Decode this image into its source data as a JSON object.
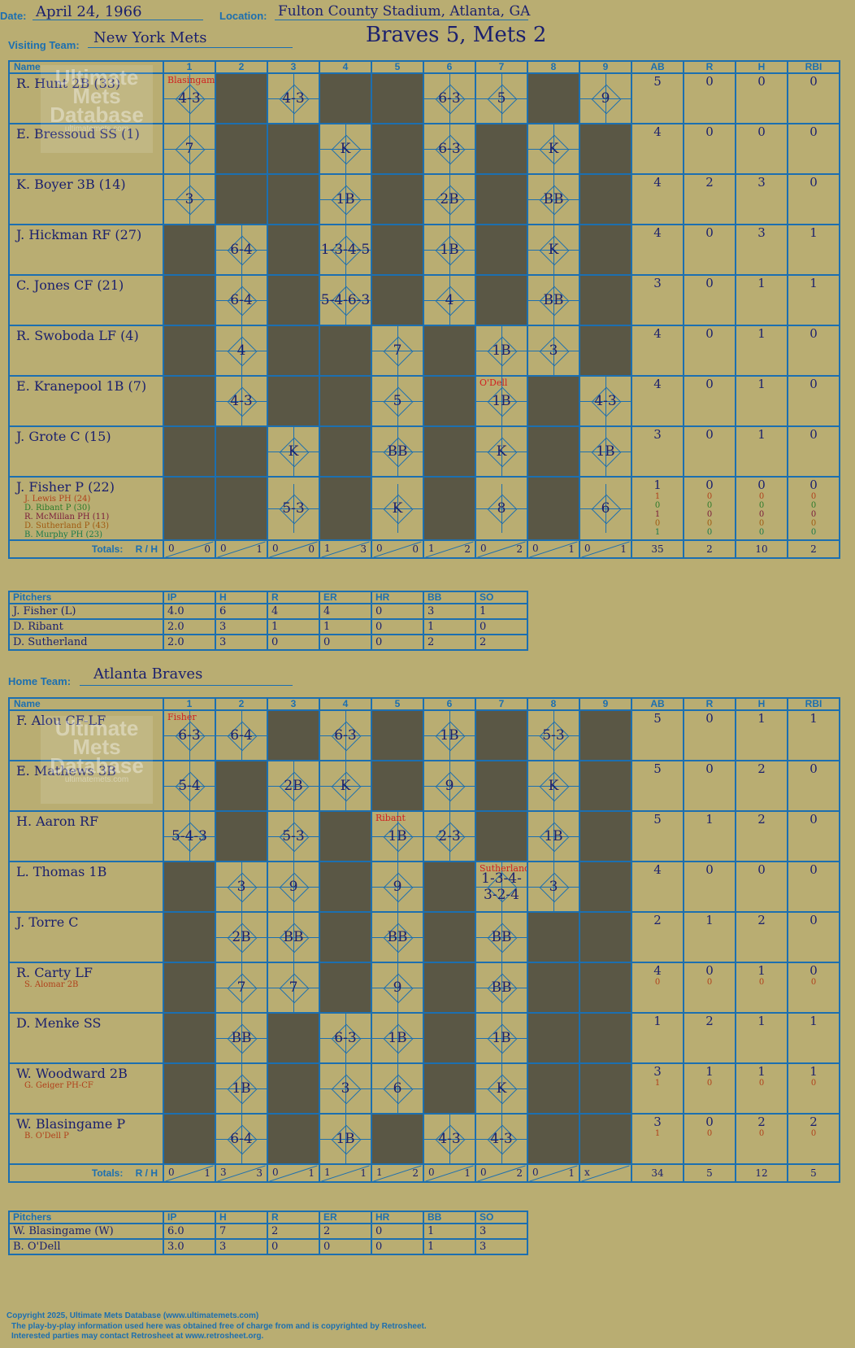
{
  "header": {
    "date_label": "Date:",
    "date": "April 24, 1966",
    "location_label": "Location:",
    "location": "Fulton County Stadium, Atlanta, GA",
    "visiting_label": "Visiting Team:",
    "visiting_team": "New York Mets",
    "score": "Braves 5, Mets 2",
    "home_label": "Home Team:",
    "home_team": "Atlanta Braves"
  },
  "watermark": {
    "l1": "Ultimate",
    "l2": "Mets",
    "l3": "Database",
    "url": "ultimatemets.com"
  },
  "columns": {
    "name": "Name",
    "innings": [
      "1",
      "2",
      "3",
      "4",
      "5",
      "6",
      "7",
      "8",
      "9"
    ],
    "stats": [
      "AB",
      "R",
      "H",
      "RBI"
    ],
    "totals": "Totals:",
    "r": "R",
    "h": "H"
  },
  "visitors": {
    "batters": [
      {
        "name": "R. Hunt 2B (33)",
        "subs": [],
        "ab": "5",
        "r": "0",
        "h": "0",
        "rbi": "0",
        "sub_stats": []
      },
      {
        "name": "E. Bressoud SS (1)",
        "subs": [],
        "ab": "4",
        "r": "0",
        "h": "0",
        "rbi": "0",
        "sub_stats": []
      },
      {
        "name": "K. Boyer 3B (14)",
        "subs": [],
        "ab": "4",
        "r": "2",
        "h": "3",
        "rbi": "0",
        "sub_stats": []
      },
      {
        "name": "J. Hickman RF (27)",
        "subs": [],
        "ab": "4",
        "r": "0",
        "h": "3",
        "rbi": "1",
        "sub_stats": []
      },
      {
        "name": "C. Jones CF (21)",
        "subs": [],
        "ab": "3",
        "r": "0",
        "h": "1",
        "rbi": "1",
        "sub_stats": []
      },
      {
        "name": "R. Swoboda LF (4)",
        "subs": [],
        "ab": "4",
        "r": "0",
        "h": "1",
        "rbi": "0",
        "sub_stats": []
      },
      {
        "name": "E. Kranepool 1B (7)",
        "subs": [],
        "ab": "4",
        "r": "0",
        "h": "1",
        "rbi": "0",
        "sub_stats": []
      },
      {
        "name": "J. Grote C (15)",
        "subs": [],
        "ab": "3",
        "r": "0",
        "h": "1",
        "rbi": "0",
        "sub_stats": []
      },
      {
        "name": "J. Fisher P (22)",
        "subs": [
          {
            "name": "J. Lewis PH (24)",
            "color": "#b0401a"
          },
          {
            "name": "D. Ribant P (30)",
            "color": "#2a7a2a"
          },
          {
            "name": "R. McMillan PH (11)",
            "color": "#7a1a3a"
          },
          {
            "name": "D. Sutherland P (43)",
            "color": "#a05a10"
          },
          {
            "name": "B. Murphy PH (23)",
            "color": "#1a7a4a"
          }
        ],
        "ab": "1",
        "r": "0",
        "h": "0",
        "rbi": "0",
        "sub_stats": [
          [
            "1",
            "0",
            "0",
            "0"
          ],
          [
            "0",
            "0",
            "0",
            "0"
          ],
          [
            "1",
            "0",
            "0",
            "0"
          ],
          [
            "0",
            "0",
            "0",
            "0"
          ],
          [
            "1",
            "0",
            "0",
            "0"
          ]
        ]
      }
    ],
    "grid": [
      [
        "4-3",
        "d",
        "4-3",
        "d",
        "d",
        "6-3",
        "5",
        "d",
        "9"
      ],
      [
        "7",
        "d",
        "d",
        "K",
        "d",
        "6-3",
        "d",
        "K",
        "d"
      ],
      [
        "3",
        "d",
        "d",
        "1B",
        "d",
        "2B",
        "d",
        "BB",
        "d"
      ],
      [
        "d",
        "6-4",
        "d",
        "1-3-4-5",
        "d",
        "1B",
        "d",
        "K",
        "d"
      ],
      [
        "d",
        "6-4",
        "d",
        "5-4-6-3",
        "d",
        "4",
        "d",
        "BB",
        "d"
      ],
      [
        "d",
        "4",
        "d",
        "d",
        "7",
        "d",
        "1B",
        "3",
        "d"
      ],
      [
        "d",
        "4-3",
        "d",
        "d",
        "5",
        "d",
        "1B",
        "d",
        "4-3"
      ],
      [
        "d",
        "d",
        "K",
        "d",
        "BB",
        "d",
        "K",
        "d",
        "1B"
      ],
      [
        "d",
        "d",
        "5-3",
        "d",
        "K",
        "d",
        "8",
        "d",
        "6"
      ]
    ],
    "notes": [
      "Blasingame",
      "O'Dell"
    ],
    "totals": {
      "innings": [
        [
          "0",
          "0"
        ],
        [
          "0",
          "1"
        ],
        [
          "0",
          "0"
        ],
        [
          "1",
          "3"
        ],
        [
          "0",
          "0"
        ],
        [
          "1",
          "2"
        ],
        [
          "0",
          "2"
        ],
        [
          "0",
          "1"
        ],
        [
          "0",
          "1"
        ]
      ],
      "ab": "35",
      "r": "2",
      "h": "10",
      "rbi": "2"
    },
    "pitchers": {
      "headers": [
        "Pitchers",
        "IP",
        "H",
        "R",
        "ER",
        "HR",
        "BB",
        "SO"
      ],
      "rows": [
        [
          "J. Fisher (L)",
          "4.0",
          "6",
          "4",
          "4",
          "0",
          "3",
          "1"
        ],
        [
          "D. Ribant",
          "2.0",
          "3",
          "1",
          "1",
          "0",
          "1",
          "0"
        ],
        [
          "D. Sutherland",
          "2.0",
          "3",
          "0",
          "0",
          "0",
          "2",
          "2"
        ]
      ]
    }
  },
  "home": {
    "batters": [
      {
        "name": "F. Alou CF-LF",
        "subs": [],
        "ab": "5",
        "r": "0",
        "h": "1",
        "rbi": "1",
        "sub_stats": []
      },
      {
        "name": "E. Mathews 3B",
        "subs": [],
        "ab": "5",
        "r": "0",
        "h": "2",
        "rbi": "0",
        "sub_stats": []
      },
      {
        "name": "H. Aaron RF",
        "subs": [],
        "ab": "5",
        "r": "1",
        "h": "2",
        "rbi": "0",
        "sub_stats": []
      },
      {
        "name": "L. Thomas 1B",
        "subs": [],
        "ab": "4",
        "r": "0",
        "h": "0",
        "rbi": "0",
        "sub_stats": []
      },
      {
        "name": "J. Torre C",
        "subs": [],
        "ab": "2",
        "r": "1",
        "h": "2",
        "rbi": "0",
        "sub_stats": []
      },
      {
        "name": "R. Carty LF",
        "subs": [
          {
            "name": "S. Alomar 2B",
            "color": "#b0401a"
          }
        ],
        "ab": "4",
        "r": "0",
        "h": "1",
        "rbi": "0",
        "sub_stats": [
          [
            "0",
            "0",
            "0",
            "0"
          ]
        ]
      },
      {
        "name": "D. Menke SS",
        "subs": [],
        "ab": "1",
        "r": "2",
        "h": "1",
        "rbi": "1",
        "sub_stats": []
      },
      {
        "name": "W. Woodward 2B",
        "subs": [
          {
            "name": "G. Geiger PH-CF",
            "color": "#b0401a"
          }
        ],
        "ab": "3",
        "r": "1",
        "h": "1",
        "rbi": "1",
        "sub_stats": [
          [
            "1",
            "0",
            "0",
            "0"
          ]
        ]
      },
      {
        "name": "W. Blasingame P",
        "subs": [
          {
            "name": "B. O'Dell P",
            "color": "#b0401a"
          }
        ],
        "ab": "3",
        "r": "0",
        "h": "2",
        "rbi": "2",
        "sub_stats": [
          [
            "1",
            "0",
            "0",
            "0"
          ]
        ]
      }
    ],
    "grid": [
      [
        "6-3",
        "6-4",
        "d",
        "6-3",
        "d",
        "1B",
        "d",
        "5-3",
        "d"
      ],
      [
        "5-4",
        "d",
        "2B",
        "K",
        "d",
        "9",
        "d",
        "K",
        "d"
      ],
      [
        "5-4-3",
        "d",
        "5-3",
        "d",
        "1B",
        "2-3",
        "d",
        "1B",
        "d"
      ],
      [
        "d",
        "3",
        "9",
        "d",
        "9",
        "d",
        "1-3-4-3-2-4",
        "3",
        "d"
      ],
      [
        "d",
        "2B",
        "BB",
        "d",
        "BB",
        "d",
        "BB",
        "d",
        "d"
      ],
      [
        "d",
        "7",
        "7",
        "d",
        "9",
        "d",
        "BB",
        "d",
        "d"
      ],
      [
        "d",
        "BB",
        "d",
        "6-3",
        "1B",
        "d",
        "1B",
        "d",
        "d"
      ],
      [
        "d",
        "1B",
        "d",
        "3",
        "6",
        "d",
        "K",
        "d",
        "d"
      ],
      [
        "d",
        "6-4",
        "d",
        "1B",
        "d",
        "4-3",
        "4-3",
        "d",
        "d"
      ]
    ],
    "notes": [
      "Fisher",
      "Ribant",
      "Sutherland"
    ],
    "totals": {
      "innings": [
        [
          "0",
          "1"
        ],
        [
          "3",
          "3"
        ],
        [
          "0",
          "1"
        ],
        [
          "1",
          "1"
        ],
        [
          "1",
          "2"
        ],
        [
          "0",
          "1"
        ],
        [
          "0",
          "2"
        ],
        [
          "0",
          "1"
        ],
        [
          "x",
          ""
        ]
      ],
      "ab": "34",
      "r": "5",
      "h": "12",
      "rbi": "5"
    },
    "pitchers": {
      "headers": [
        "Pitchers",
        "IP",
        "H",
        "R",
        "ER",
        "HR",
        "BB",
        "SO"
      ],
      "rows": [
        [
          "W. Blasingame (W)",
          "6.0",
          "7",
          "2",
          "2",
          "0",
          "1",
          "3"
        ],
        [
          "B. O'Dell",
          "3.0",
          "3",
          "0",
          "0",
          "0",
          "1",
          "3"
        ]
      ]
    }
  },
  "footer": {
    "l1": "Copyright 2025, Ultimate Mets Database (www.ultimatemets.com)",
    "l2": "The play-by-play information used here was obtained free of charge from and is copyrighted by Retrosheet.",
    "l3": "Interested parties may contact Retrosheet at www.retrosheet.org."
  }
}
